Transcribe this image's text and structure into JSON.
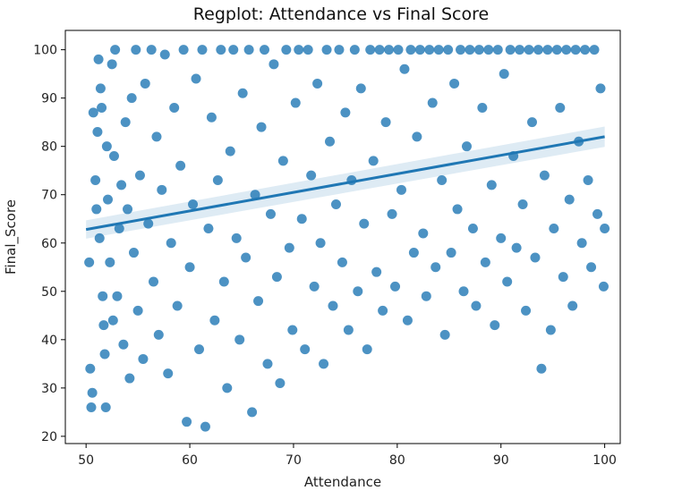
{
  "colors": {
    "points": "#1f77b4",
    "line": "#1f77b4",
    "band": "#1f77b4"
  },
  "chart_data": {
    "type": "scatter",
    "title": "Regplot: Attendance vs Final Score",
    "xlabel": "Attendance",
    "ylabel": "Final_Score",
    "xlim": [
      48,
      101.5
    ],
    "ylim": [
      18.5,
      104
    ],
    "xticks": [
      50,
      60,
      70,
      80,
      90,
      100
    ],
    "yticks": [
      20,
      30,
      40,
      50,
      60,
      70,
      80,
      90,
      100
    ],
    "grid": false,
    "regression": {
      "x": [
        50,
        100
      ],
      "y": [
        62.8,
        82.0
      ],
      "ci_start": [
        60.9,
        64.7
      ],
      "ci_end": [
        79.9,
        84.1
      ]
    },
    "points": [
      [
        50.3,
        56
      ],
      [
        50.4,
        34
      ],
      [
        50.5,
        26
      ],
      [
        50.6,
        29
      ],
      [
        50.7,
        87
      ],
      [
        50.9,
        73
      ],
      [
        51.0,
        67
      ],
      [
        51.1,
        83
      ],
      [
        51.2,
        98
      ],
      [
        51.3,
        61
      ],
      [
        51.4,
        92
      ],
      [
        51.5,
        88
      ],
      [
        51.6,
        49
      ],
      [
        51.7,
        43
      ],
      [
        51.8,
        37
      ],
      [
        51.9,
        26
      ],
      [
        52.0,
        80
      ],
      [
        52.1,
        69
      ],
      [
        52.3,
        56
      ],
      [
        52.5,
        97
      ],
      [
        52.6,
        44
      ],
      [
        52.7,
        78
      ],
      [
        52.8,
        100
      ],
      [
        53.0,
        49
      ],
      [
        53.2,
        63
      ],
      [
        53.4,
        72
      ],
      [
        53.6,
        39
      ],
      [
        53.8,
        85
      ],
      [
        54.0,
        67
      ],
      [
        54.2,
        32
      ],
      [
        54.4,
        90
      ],
      [
        54.6,
        58
      ],
      [
        54.8,
        100
      ],
      [
        55.0,
        46
      ],
      [
        55.2,
        74
      ],
      [
        55.5,
        36
      ],
      [
        55.7,
        93
      ],
      [
        56.0,
        64
      ],
      [
        56.3,
        100
      ],
      [
        56.5,
        52
      ],
      [
        56.8,
        82
      ],
      [
        57.0,
        41
      ],
      [
        57.3,
        71
      ],
      [
        57.6,
        99
      ],
      [
        57.9,
        33
      ],
      [
        58.2,
        60
      ],
      [
        58.5,
        88
      ],
      [
        58.8,
        47
      ],
      [
        59.1,
        76
      ],
      [
        59.4,
        100
      ],
      [
        59.7,
        23
      ],
      [
        60.0,
        55
      ],
      [
        60.3,
        68
      ],
      [
        60.6,
        94
      ],
      [
        60.9,
        38
      ],
      [
        61.2,
        100
      ],
      [
        61.5,
        22
      ],
      [
        61.8,
        63
      ],
      [
        62.1,
        86
      ],
      [
        62.4,
        44
      ],
      [
        62.7,
        73
      ],
      [
        63.0,
        100
      ],
      [
        63.3,
        52
      ],
      [
        63.6,
        30
      ],
      [
        63.9,
        79
      ],
      [
        64.2,
        100
      ],
      [
        64.5,
        61
      ],
      [
        64.8,
        40
      ],
      [
        65.1,
        91
      ],
      [
        65.4,
        57
      ],
      [
        65.7,
        100
      ],
      [
        66.0,
        25
      ],
      [
        66.3,
        70
      ],
      [
        66.6,
        48
      ],
      [
        66.9,
        84
      ],
      [
        67.2,
        100
      ],
      [
        67.5,
        35
      ],
      [
        67.8,
        66
      ],
      [
        68.1,
        97
      ],
      [
        68.4,
        53
      ],
      [
        68.7,
        31
      ],
      [
        69.0,
        77
      ],
      [
        69.3,
        100
      ],
      [
        69.6,
        59
      ],
      [
        69.9,
        42
      ],
      [
        70.2,
        89
      ],
      [
        70.5,
        100
      ],
      [
        70.8,
        65
      ],
      [
        71.1,
        38
      ],
      [
        71.4,
        100
      ],
      [
        71.7,
        74
      ],
      [
        72.0,
        51
      ],
      [
        72.3,
        93
      ],
      [
        72.6,
        60
      ],
      [
        72.9,
        35
      ],
      [
        73.2,
        100
      ],
      [
        73.5,
        81
      ],
      [
        73.8,
        47
      ],
      [
        74.1,
        68
      ],
      [
        74.4,
        100
      ],
      [
        74.7,
        56
      ],
      [
        75.0,
        87
      ],
      [
        75.3,
        42
      ],
      [
        75.6,
        73
      ],
      [
        75.9,
        100
      ],
      [
        76.2,
        50
      ],
      [
        76.5,
        92
      ],
      [
        76.8,
        64
      ],
      [
        77.1,
        38
      ],
      [
        77.4,
        100
      ],
      [
        77.7,
        77
      ],
      [
        78.0,
        54
      ],
      [
        78.3,
        100
      ],
      [
        78.6,
        46
      ],
      [
        78.9,
        85
      ],
      [
        79.2,
        100
      ],
      [
        79.5,
        66
      ],
      [
        79.8,
        51
      ],
      [
        80.1,
        100
      ],
      [
        80.4,
        71
      ],
      [
        80.7,
        96
      ],
      [
        81.0,
        44
      ],
      [
        81.3,
        100
      ],
      [
        81.6,
        58
      ],
      [
        81.9,
        82
      ],
      [
        82.2,
        100
      ],
      [
        82.5,
        62
      ],
      [
        82.8,
        49
      ],
      [
        83.1,
        100
      ],
      [
        83.4,
        89
      ],
      [
        83.7,
        55
      ],
      [
        84.0,
        100
      ],
      [
        84.3,
        73
      ],
      [
        84.6,
        41
      ],
      [
        84.9,
        100
      ],
      [
        85.2,
        58
      ],
      [
        85.5,
        93
      ],
      [
        85.8,
        67
      ],
      [
        86.1,
        100
      ],
      [
        86.4,
        50
      ],
      [
        86.7,
        80
      ],
      [
        87.0,
        100
      ],
      [
        87.3,
        63
      ],
      [
        87.6,
        47
      ],
      [
        87.9,
        100
      ],
      [
        88.2,
        88
      ],
      [
        88.5,
        56
      ],
      [
        88.8,
        100
      ],
      [
        89.1,
        72
      ],
      [
        89.4,
        43
      ],
      [
        89.7,
        100
      ],
      [
        90.0,
        61
      ],
      [
        90.3,
        95
      ],
      [
        90.6,
        52
      ],
      [
        90.9,
        100
      ],
      [
        91.2,
        78
      ],
      [
        91.5,
        59
      ],
      [
        91.8,
        100
      ],
      [
        92.1,
        68
      ],
      [
        92.4,
        46
      ],
      [
        92.7,
        100
      ],
      [
        93.0,
        85
      ],
      [
        93.3,
        57
      ],
      [
        93.6,
        100
      ],
      [
        93.9,
        34
      ],
      [
        94.2,
        74
      ],
      [
        94.5,
        100
      ],
      [
        94.8,
        42
      ],
      [
        95.1,
        63
      ],
      [
        95.4,
        100
      ],
      [
        95.7,
        88
      ],
      [
        96.0,
        53
      ],
      [
        96.3,
        100
      ],
      [
        96.6,
        69
      ],
      [
        96.9,
        47
      ],
      [
        97.2,
        100
      ],
      [
        97.5,
        81
      ],
      [
        97.8,
        60
      ],
      [
        98.1,
        100
      ],
      [
        98.4,
        73
      ],
      [
        98.7,
        55
      ],
      [
        99.0,
        100
      ],
      [
        99.3,
        66
      ],
      [
        99.6,
        92
      ],
      [
        99.9,
        51
      ],
      [
        100.0,
        63
      ]
    ]
  }
}
